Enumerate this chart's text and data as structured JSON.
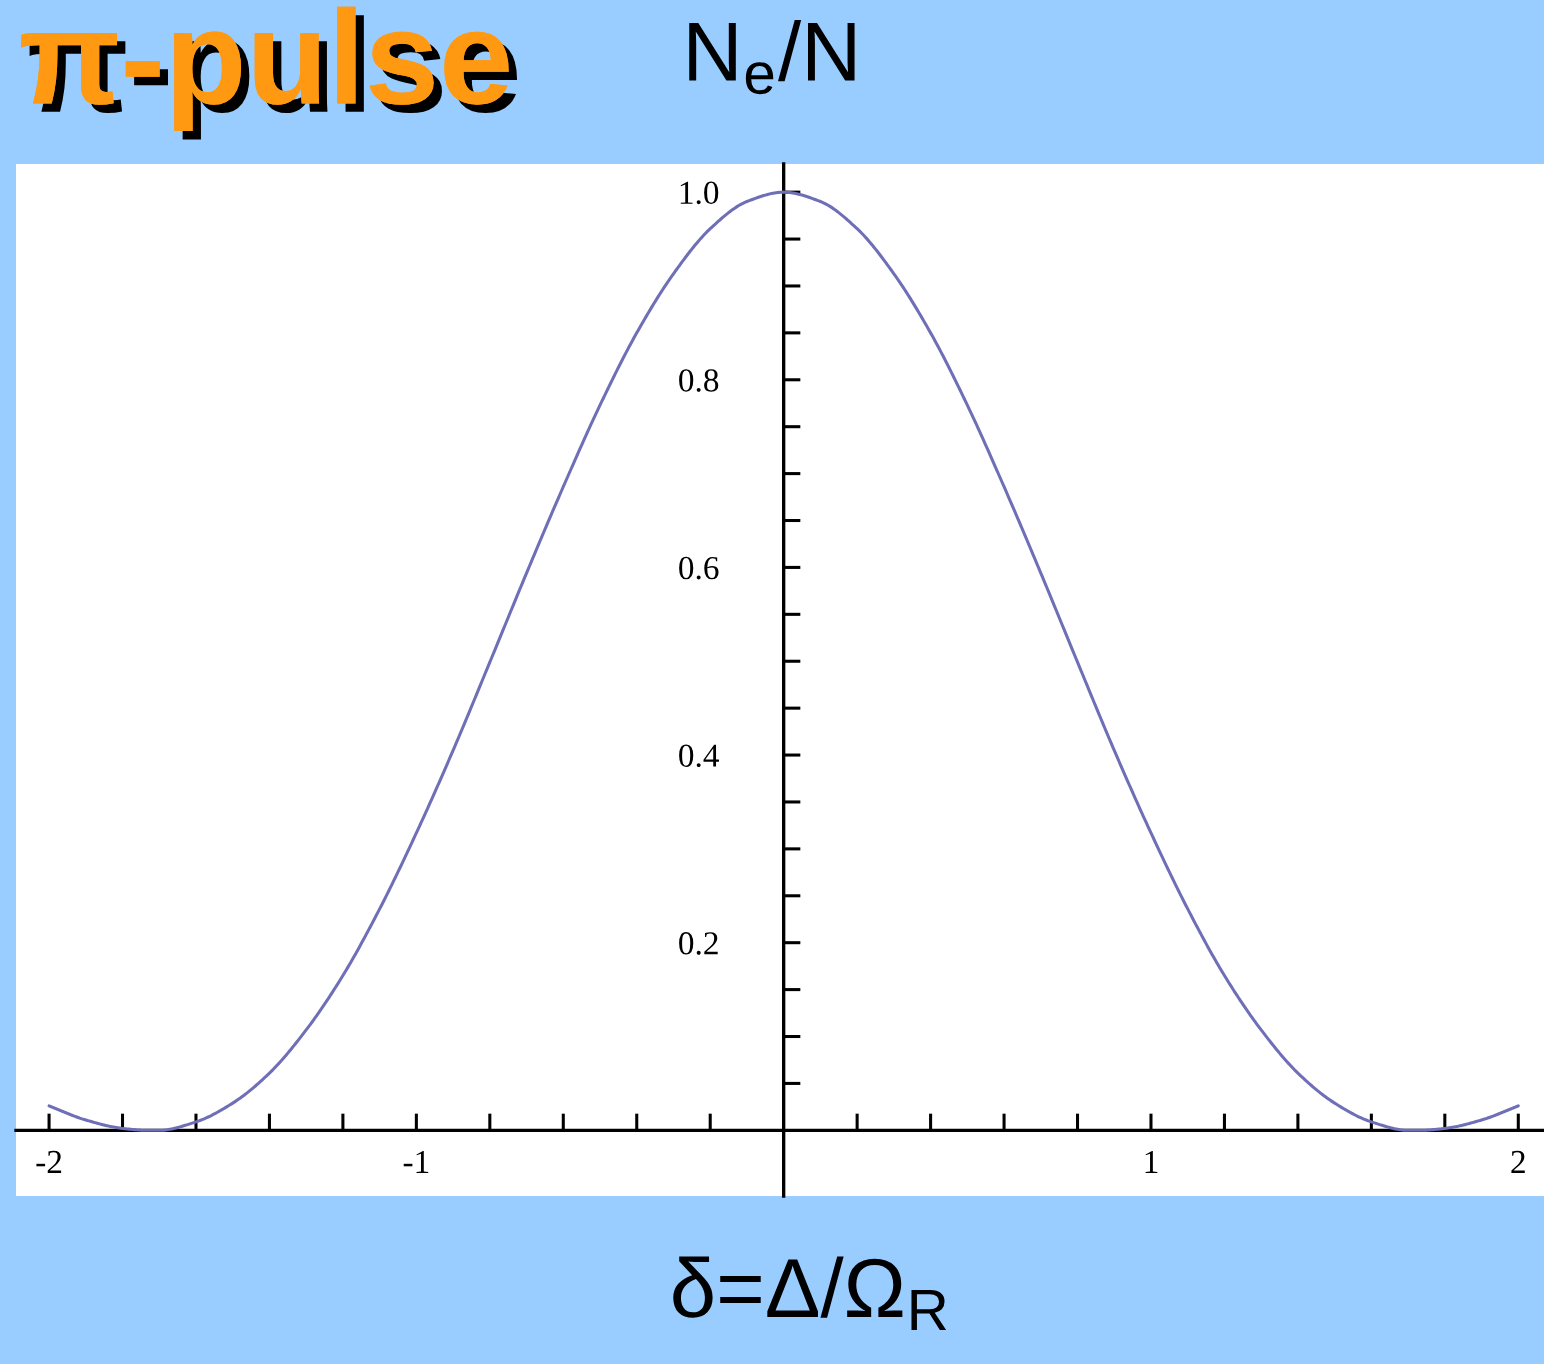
{
  "chart_data": {
    "type": "line",
    "title": "π-pulse",
    "ylabel": "N$_{e}$/N",
    "xlabel": "δ=Δ/Ω$_{R}$",
    "x": [
      -2.0,
      -1.9,
      -1.8,
      -1.73,
      -1.7,
      -1.6,
      -1.5,
      -1.4,
      -1.3,
      -1.2,
      -1.1,
      -1.0,
      -0.9,
      -0.8,
      -0.7,
      -0.6,
      -0.5,
      -0.4,
      -0.3,
      -0.2,
      -0.1,
      0.0,
      0.1,
      0.2,
      0.3,
      0.4,
      0.5,
      0.6,
      0.7,
      0.8,
      0.9,
      1.0,
      1.1,
      1.2,
      1.3,
      1.4,
      1.5,
      1.6,
      1.7,
      1.73,
      1.8,
      1.9,
      2.0
    ],
    "series": [
      {
        "color": "#6f6fb8",
        "values": [
          0.026,
          0.011,
          0.002,
          0.0,
          0.0,
          0.009,
          0.029,
          0.061,
          0.107,
          0.165,
          0.236,
          0.317,
          0.405,
          0.499,
          0.594,
          0.686,
          0.773,
          0.85,
          0.913,
          0.961,
          0.99,
          1.0,
          0.99,
          0.961,
          0.913,
          0.85,
          0.773,
          0.686,
          0.594,
          0.499,
          0.405,
          0.317,
          0.236,
          0.165,
          0.107,
          0.061,
          0.029,
          0.009,
          0.0,
          0.0,
          0.002,
          0.011,
          0.026
        ]
      }
    ],
    "xlim": [
      -2.09,
      2.07
    ],
    "ylim": [
      -0.07,
      1.03
    ],
    "xticks": [
      -2,
      {
        "value": -1.8,
        "label": null
      },
      {
        "value": -1.6,
        "label": null
      },
      {
        "value": -1.4,
        "label": null
      },
      {
        "value": -1.2,
        "label": null
      },
      -1,
      {
        "value": -0.8,
        "label": null
      },
      {
        "value": -0.6,
        "label": null
      },
      {
        "value": -0.4,
        "label": null
      },
      {
        "value": -0.2,
        "label": null
      },
      {
        "value": 0.2,
        "label": null
      },
      {
        "value": 0.4,
        "label": null
      },
      {
        "value": 0.6,
        "label": null
      },
      {
        "value": 0.8,
        "label": null
      },
      1,
      {
        "value": 1.2,
        "label": null
      },
      {
        "value": 1.4,
        "label": null
      },
      {
        "value": 1.6,
        "label": null
      },
      {
        "value": 1.8,
        "label": null
      },
      2
    ],
    "yticks": [
      {
        "value": 0.05,
        "label": null
      },
      {
        "value": 0.1,
        "label": null
      },
      {
        "value": 0.15,
        "label": null
      },
      0.2,
      {
        "value": 0.25,
        "label": null
      },
      {
        "value": 0.3,
        "label": null
      },
      {
        "value": 0.35,
        "label": null
      },
      0.4,
      {
        "value": 0.45,
        "label": null
      },
      {
        "value": 0.5,
        "label": null
      },
      {
        "value": 0.55,
        "label": null
      },
      0.6,
      {
        "value": 0.65,
        "label": null
      },
      {
        "value": 0.7,
        "label": null
      },
      {
        "value": 0.75,
        "label": null
      },
      0.8,
      {
        "value": 0.85,
        "label": null
      },
      {
        "value": 0.9,
        "label": null
      },
      {
        "value": 0.95,
        "label": null
      },
      {
        "value": 1,
        "label": "1.0"
      }
    ],
    "line_style": "solid"
  }
}
